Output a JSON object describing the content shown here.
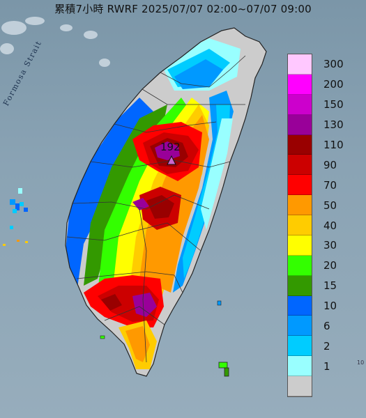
{
  "map": {
    "title": "累積7小時 RWRF 2025/07/07 02:00~07/07 09:00",
    "sea_label": "Formosa Strait",
    "max_value_label": "192",
    "edge_mark": "10"
  },
  "legend": {
    "levels": [
      {
        "label": "300",
        "color": "#ffc8ff"
      },
      {
        "label": "200",
        "color": "#ff00ff"
      },
      {
        "label": "150",
        "color": "#cc00cc"
      },
      {
        "label": "130",
        "color": "#990099"
      },
      {
        "label": "110",
        "color": "#990000"
      },
      {
        "label": "90",
        "color": "#cc0000"
      },
      {
        "label": "70",
        "color": "#ff0000"
      },
      {
        "label": "50",
        "color": "#ff9900"
      },
      {
        "label": "40",
        "color": "#ffcc00"
      },
      {
        "label": "30",
        "color": "#ffff00"
      },
      {
        "label": "20",
        "color": "#33ff00"
      },
      {
        "label": "15",
        "color": "#339900"
      },
      {
        "label": "10",
        "color": "#0066ff"
      },
      {
        "label": "6",
        "color": "#0099ff"
      },
      {
        "label": "2",
        "color": "#00ccff"
      },
      {
        "label": "1",
        "color": "#99ffff"
      },
      {
        "label": "",
        "color": "#cccccc"
      }
    ]
  }
}
